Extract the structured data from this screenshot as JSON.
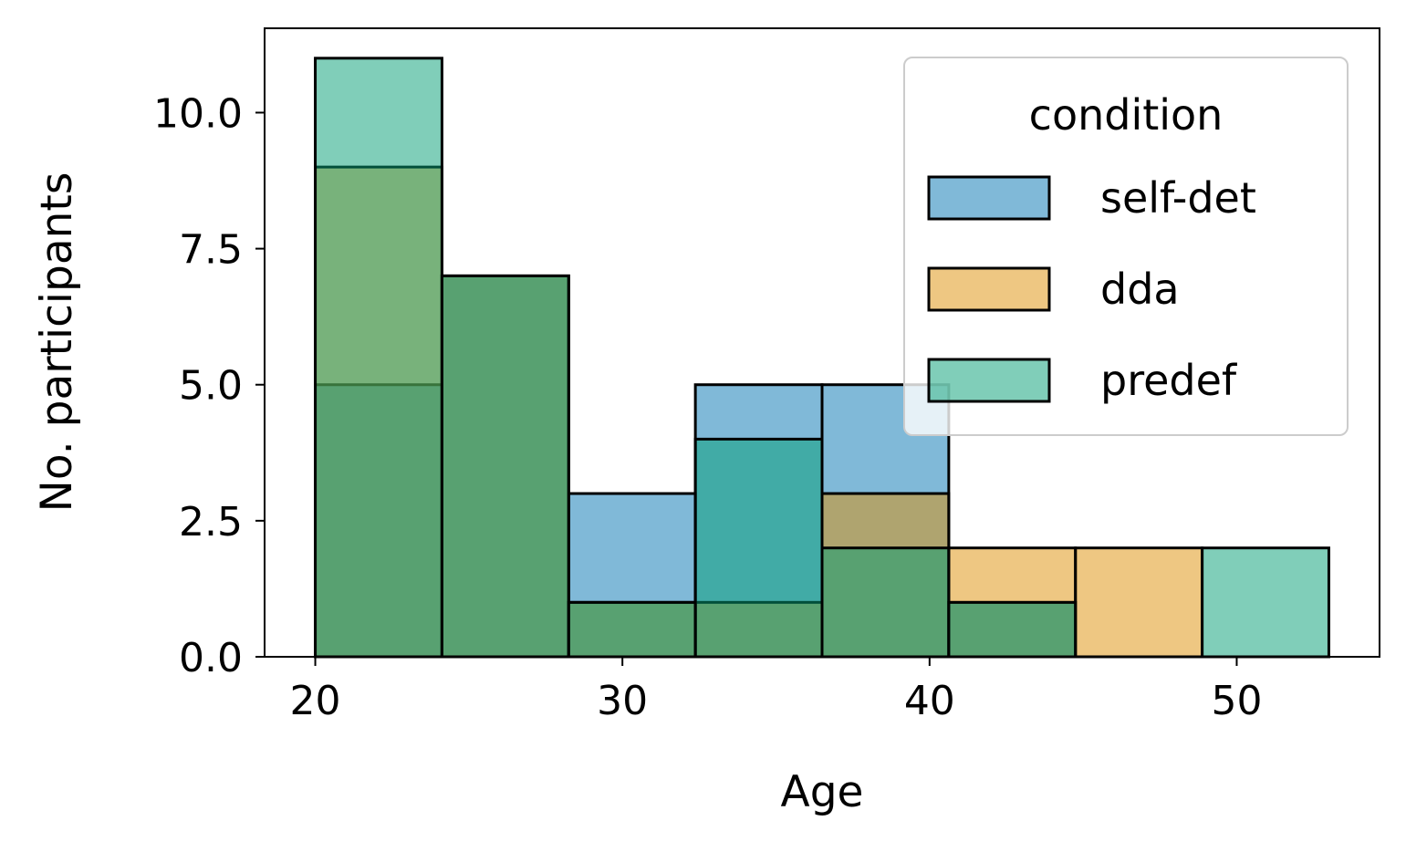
{
  "chart_data": {
    "type": "bar",
    "subtype": "overlapping histogram",
    "xlabel": "Age",
    "ylabel": "No. participants",
    "xlim": [
      18.35,
      54.65
    ],
    "ylim": [
      0,
      11.55
    ],
    "xticks": [
      {
        "value": 20,
        "label": "20"
      },
      {
        "value": 30,
        "label": "30"
      },
      {
        "value": 40,
        "label": "40"
      },
      {
        "value": 50,
        "label": "50"
      }
    ],
    "yticks": [
      {
        "value": 0,
        "label": "0.0"
      },
      {
        "value": 2.5,
        "label": "2.5"
      },
      {
        "value": 5,
        "label": "5.0"
      },
      {
        "value": 7.5,
        "label": "7.5"
      },
      {
        "value": 10,
        "label": "10.0"
      }
    ],
    "bin_edges": [
      20,
      24.125,
      28.25,
      32.375,
      36.5,
      40.625,
      44.75,
      48.875,
      53
    ],
    "series": [
      {
        "name": "self-det",
        "color": "#0173b2",
        "values": [
          5,
          7,
          3,
          5,
          5,
          1,
          0,
          0
        ]
      },
      {
        "name": "dda",
        "color": "#de8f05",
        "values": [
          9,
          7,
          1,
          1,
          3,
          2,
          2,
          0
        ]
      },
      {
        "name": "predef",
        "color": "#029e73",
        "values": [
          11,
          7,
          1,
          4,
          2,
          1,
          0,
          2
        ]
      }
    ],
    "bar_alpha": 0.5,
    "grid": false,
    "legend": {
      "title": "condition",
      "placement": "top-right",
      "entries": [
        "self-det",
        "dda",
        "predef"
      ]
    }
  }
}
